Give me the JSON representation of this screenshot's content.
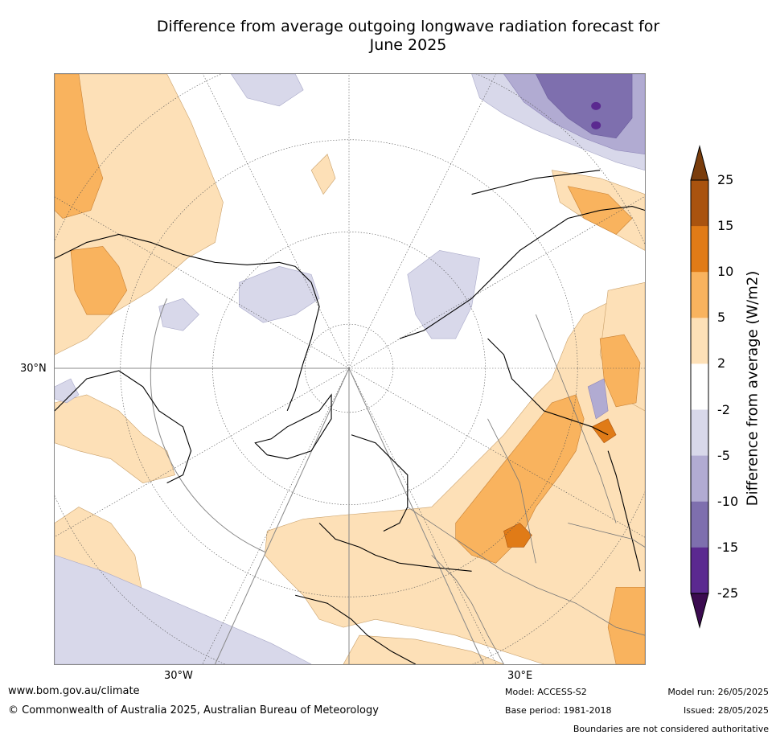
{
  "title": {
    "line1": "Difference from average outgoing longwave radiation forecast for",
    "line2": "June 2025"
  },
  "map": {
    "graticule_labels": {
      "lat": "30°N",
      "lon_west": "30°W",
      "lon_east": "30°E"
    }
  },
  "colorbar": {
    "title": "Difference from average (W/m2)",
    "levels": [
      "25",
      "15",
      "10",
      "5",
      "2",
      "-2",
      "-5",
      "-10",
      "-15",
      "-25"
    ],
    "colors": {
      "above_25": "#7a3d0c",
      "15_25": "#a9530f",
      "10_15": "#e07b17",
      "5_10": "#f9b35e",
      "2_5": "#fde0b7",
      "m2_2": "#ffffff",
      "m5_m2": "#d8d8ea",
      "m10_m5": "#b1abd2",
      "m15_m10": "#7e6fae",
      "m25_m15": "#5b2990",
      "below_m25": "#3b0b50"
    }
  },
  "footer": {
    "url": "www.bom.gov.au/climate",
    "copyright": "© Commonwealth of Australia 2025, Australian Bureau of Meteorology",
    "model": "Model: ACCESS-S2",
    "base_period": "Base period: 1981-2018",
    "model_run": "Model run: 26/05/2025",
    "issued": "Issued: 28/05/2025",
    "disclaimer": "Boundaries are not considered authoritative"
  }
}
